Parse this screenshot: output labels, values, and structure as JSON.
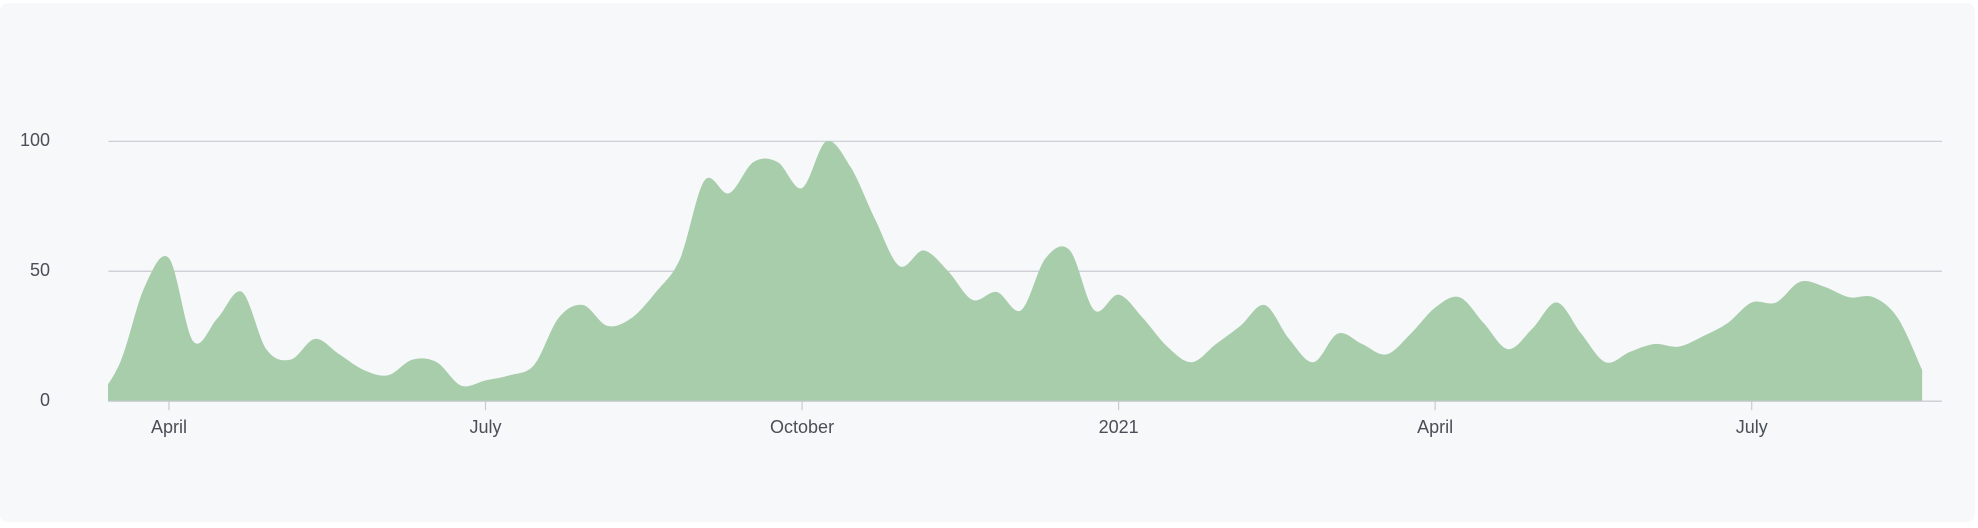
{
  "chart_data": {
    "type": "area",
    "categories": [
      null,
      null,
      null,
      "April",
      null,
      null,
      null,
      null,
      null,
      null,
      null,
      null,
      null,
      null,
      null,
      null,
      "July",
      null,
      null,
      null,
      null,
      null,
      null,
      null,
      null,
      null,
      null,
      null,
      null,
      "October",
      null,
      null,
      null,
      null,
      null,
      null,
      null,
      null,
      null,
      null,
      null,
      null,
      "2021",
      null,
      null,
      null,
      null,
      null,
      null,
      null,
      null,
      null,
      null,
      null,
      null,
      "April",
      null,
      null,
      null,
      null,
      null,
      null,
      null,
      null,
      null,
      null,
      null,
      null,
      "July",
      null,
      null,
      null,
      null,
      null,
      null,
      null
    ],
    "values": [
      0,
      15,
      44,
      55,
      23,
      32,
      42,
      20,
      16,
      24,
      18,
      12,
      10,
      16,
      15,
      6,
      8,
      10,
      14,
      32,
      37,
      29,
      32,
      42,
      55,
      85,
      80,
      92,
      92,
      82,
      100,
      90,
      70,
      52,
      58,
      50,
      39,
      42,
      35,
      55,
      58,
      35,
      41,
      32,
      21,
      15,
      22,
      29,
      37,
      24,
      15,
      26,
      22,
      18,
      26,
      36,
      40,
      30,
      20,
      28,
      38,
      26,
      15,
      19,
      22,
      21,
      25,
      30,
      38,
      38,
      46,
      44,
      40,
      40,
      32,
      12
    ],
    "color": "#a7cdab",
    "ylim": [
      0,
      100
    ],
    "yticks": [
      0,
      50,
      100
    ],
    "grid": true
  }
}
